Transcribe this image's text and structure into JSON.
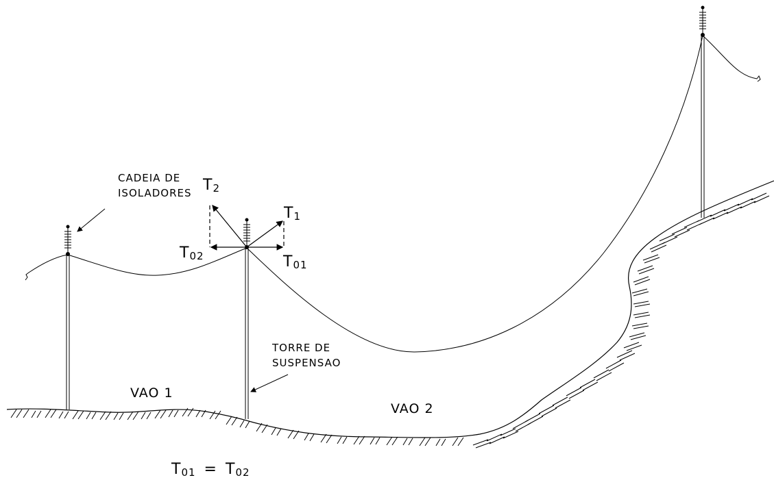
{
  "labels": {
    "insulator_chain_line1": "CADEIA DE",
    "insulator_chain_line2": "ISOLADORES",
    "tower_line1": "TORRE DE",
    "tower_line2": "SUSPENSAO",
    "span1": "VAO 1",
    "span2": "VAO 2"
  },
  "forces": {
    "t2_main": "T",
    "t2_sub": "2",
    "t1_main": "T",
    "t1_sub": "1",
    "t02_main": "T",
    "t02_sub": "02",
    "t01_main": "T",
    "t01_sub": "01"
  },
  "equation": {
    "left_main": "T",
    "left_sub": "01",
    "operator": "=",
    "right_main": "T",
    "right_sub": "02"
  },
  "colors": {
    "ink": "#000000",
    "background": "#ffffff"
  }
}
